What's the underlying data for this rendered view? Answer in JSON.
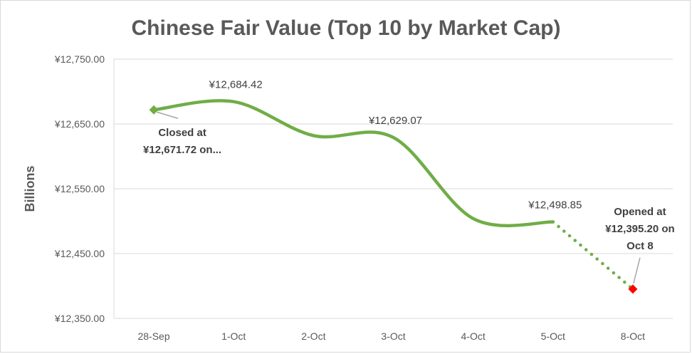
{
  "chart_data": {
    "type": "line",
    "title": "Chinese Fair Value (Top 10 by Market Cap)",
    "ylabel": "Billions",
    "xlabel": "",
    "categories": [
      "28-Sep",
      "1-Oct",
      "2-Oct",
      "3-Oct",
      "4-Oct",
      "5-Oct",
      "8-Oct"
    ],
    "ylim": [
      12350,
      12750
    ],
    "yticks": [
      12350,
      12450,
      12550,
      12650,
      12750
    ],
    "ytick_labels": [
      "¥12,350.00",
      "¥12,450.00",
      "¥12,550.00",
      "¥12,650.00",
      "¥12,750.00"
    ],
    "grid": true,
    "legend": "none",
    "series": [
      {
        "values": [
          12671.72,
          12684.42,
          12632.0,
          12629.07,
          12504.0,
          12498.85,
          12395.2
        ],
        "color": "#70ad47",
        "projected_segment": [
          5,
          6
        ]
      }
    ],
    "data_labels": [
      {
        "index": 1,
        "text": "¥12,684.42"
      },
      {
        "index": 3,
        "text": "¥12,629.07"
      },
      {
        "index": 5,
        "text": "¥12,498.85"
      }
    ],
    "annotations": [
      {
        "index": 0,
        "lines": [
          "Closed at",
          "¥12,671.72 on..."
        ],
        "marker_color": "#70ad47"
      },
      {
        "index": 6,
        "lines": [
          "Opened at",
          "¥12,395.20 on",
          "Oct 8"
        ],
        "marker_color": "#ff0000"
      }
    ]
  }
}
